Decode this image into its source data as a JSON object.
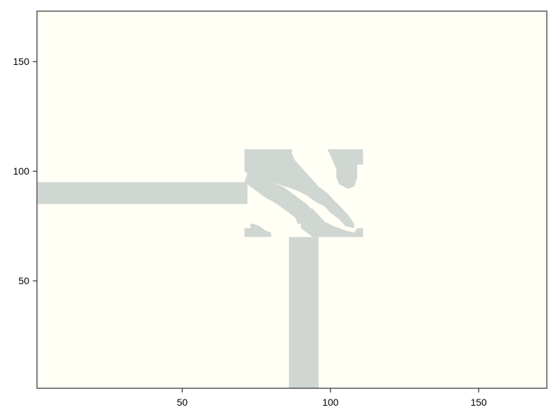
{
  "chart_data": {
    "type": "heatmap",
    "title": "",
    "xlabel": "",
    "ylabel": "",
    "xlim": [
      1,
      173
    ],
    "ylim": [
      1,
      173
    ],
    "xticks": [
      50,
      100,
      150
    ],
    "yticks": [
      50,
      100,
      150
    ],
    "grid": false,
    "colors": {
      "empty": "#fffff5",
      "solid": "#d0d6d1",
      "frame": "#555555"
    },
    "solid_regions": [
      {
        "name": "horizontal-channel",
        "x": [
          1,
          72
        ],
        "y": [
          85,
          95
        ]
      },
      {
        "name": "vertical-channel",
        "x": [
          86,
          96
        ],
        "y": [
          1,
          70
        ]
      }
    ],
    "design_region": {
      "x": [
        71,
        111
      ],
      "y": [
        70,
        110
      ]
    },
    "design_solid_shapes": [
      {
        "name": "upper-left-block",
        "points": [
          [
            71,
            110
          ],
          [
            87,
            110
          ],
          [
            87,
            108
          ],
          [
            88,
            105
          ],
          [
            90,
            102
          ],
          [
            92,
            99
          ],
          [
            94,
            96
          ],
          [
            96,
            93
          ],
          [
            99,
            90
          ],
          [
            101,
            87
          ],
          [
            104,
            83
          ],
          [
            106,
            80
          ],
          [
            108,
            76
          ],
          [
            108,
            74
          ],
          [
            105,
            75
          ],
          [
            103,
            78
          ],
          [
            100,
            81
          ],
          [
            98,
            84
          ],
          [
            95,
            86
          ],
          [
            92,
            89
          ],
          [
            89,
            91
          ],
          [
            85,
            93
          ],
          [
            80,
            95
          ],
          [
            76,
            97
          ],
          [
            72,
            99
          ],
          [
            71,
            100
          ]
        ]
      },
      {
        "name": "upper-right-block",
        "points": [
          [
            99,
            110
          ],
          [
            111,
            110
          ],
          [
            111,
            103
          ],
          [
            109,
            103
          ],
          [
            109,
            97
          ],
          [
            108,
            93
          ],
          [
            106,
            92
          ],
          [
            103,
            94
          ],
          [
            102,
            97
          ],
          [
            102,
            101
          ],
          [
            101,
            104
          ],
          [
            100,
            107
          ]
        ]
      },
      {
        "name": "lower-left-block",
        "points": [
          [
            72,
            99
          ],
          [
            76,
            97
          ],
          [
            80,
            95
          ],
          [
            84,
            93
          ],
          [
            86,
            91
          ],
          [
            89,
            88
          ],
          [
            92,
            85
          ],
          [
            94,
            82
          ],
          [
            94,
            79
          ],
          [
            92,
            76
          ],
          [
            89,
            76
          ],
          [
            88,
            79
          ],
          [
            85,
            82
          ],
          [
            82,
            85
          ],
          [
            78,
            88
          ],
          [
            76,
            90
          ],
          [
            74,
            92
          ],
          [
            72,
            94
          ],
          [
            71,
            95
          ]
        ]
      },
      {
        "name": "lower-left-corner",
        "points": [
          [
            71,
            70
          ],
          [
            80,
            70
          ],
          [
            80,
            72
          ],
          [
            78,
            73
          ],
          [
            76,
            75
          ],
          [
            74,
            76
          ],
          [
            73,
            76
          ],
          [
            73,
            74
          ],
          [
            71,
            74
          ]
        ]
      },
      {
        "name": "lower-right-block",
        "points": [
          [
            94,
            70
          ],
          [
            111,
            70
          ],
          [
            111,
            74
          ],
          [
            109,
            74
          ],
          [
            108,
            72
          ],
          [
            105,
            73
          ],
          [
            101,
            75
          ],
          [
            98,
            77
          ],
          [
            96,
            80
          ],
          [
            94,
            83
          ],
          [
            93,
            83
          ],
          [
            93,
            80
          ],
          [
            90,
            76
          ],
          [
            90,
            74
          ],
          [
            92,
            72
          ]
        ]
      }
    ]
  }
}
